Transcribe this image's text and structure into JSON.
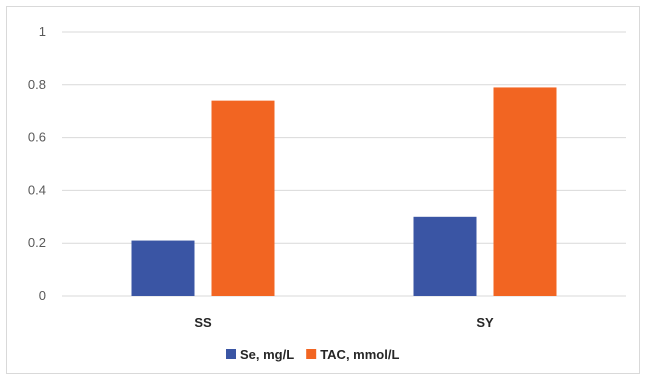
{
  "chart_data": {
    "type": "bar",
    "categories": [
      "SS",
      "SY"
    ],
    "series": [
      {
        "name": "Se, mg/L",
        "values": [
          0.21,
          0.3
        ],
        "color": "#3a55a4"
      },
      {
        "name": "TAC, mmol/L",
        "values": [
          0.74,
          0.79
        ],
        "color": "#f26522"
      }
    ],
    "ylim": [
      0,
      1
    ],
    "yticks": [
      "0",
      "0.2",
      "0.4",
      "0.6",
      "0.8",
      "1"
    ],
    "grid": true,
    "legend_position": "bottom",
    "gridline_color": "#d9d9d9"
  }
}
